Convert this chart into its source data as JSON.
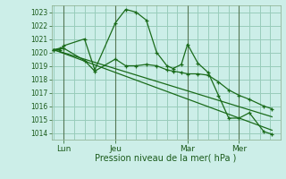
{
  "bg_color": "#cceee8",
  "grid_color": "#99ccbb",
  "line_color": "#1a6b1a",
  "marker_color": "#1a6b1a",
  "xlabel": "Pression niveau de la mer( hPa )",
  "ylim": [
    1013.5,
    1023.5
  ],
  "yticks": [
    1014,
    1015,
    1016,
    1017,
    1018,
    1019,
    1020,
    1021,
    1022,
    1023
  ],
  "day_labels": [
    "Lun",
    "Jeu",
    "Mar",
    "Mer"
  ],
  "day_positions": [
    0.5,
    3.0,
    6.5,
    9.0
  ],
  "vline_positions": [
    0.5,
    3.0,
    6.5,
    9.0
  ],
  "xlim": [
    -0.1,
    11.0
  ],
  "series0_x": [
    0.0,
    0.3,
    0.5,
    1.5,
    2.0,
    3.0,
    3.5,
    4.0,
    4.5,
    5.0,
    5.5,
    5.8,
    6.2,
    6.5,
    7.0,
    7.5,
    8.0,
    8.5,
    9.0,
    9.5,
    10.2,
    10.6
  ],
  "series0_y": [
    1020.2,
    1020.2,
    1020.5,
    1021.0,
    1018.7,
    1022.2,
    1023.2,
    1023.0,
    1022.4,
    1020.0,
    1019.0,
    1018.8,
    1019.1,
    1020.6,
    1019.2,
    1018.5,
    1016.8,
    1015.1,
    1015.1,
    1015.5,
    1014.1,
    1013.9
  ],
  "series1_x": [
    0.0,
    0.3,
    0.5,
    1.5,
    2.0,
    3.0,
    3.5,
    4.0,
    4.5,
    5.0,
    5.5,
    5.8,
    6.2,
    6.5,
    7.0,
    7.5,
    8.0,
    8.5,
    9.0,
    9.5,
    10.2,
    10.6
  ],
  "series1_y": [
    1020.2,
    1020.3,
    1020.3,
    1019.4,
    1018.6,
    1019.5,
    1019.0,
    1019.0,
    1019.1,
    1019.0,
    1018.7,
    1018.6,
    1018.5,
    1018.4,
    1018.4,
    1018.3,
    1017.8,
    1017.2,
    1016.8,
    1016.5,
    1016.0,
    1015.8
  ],
  "series2_x": [
    0.0,
    10.6
  ],
  "series2_y": [
    1020.2,
    1015.2
  ],
  "series3_x": [
    0.0,
    10.6
  ],
  "series3_y": [
    1020.2,
    1014.2
  ]
}
